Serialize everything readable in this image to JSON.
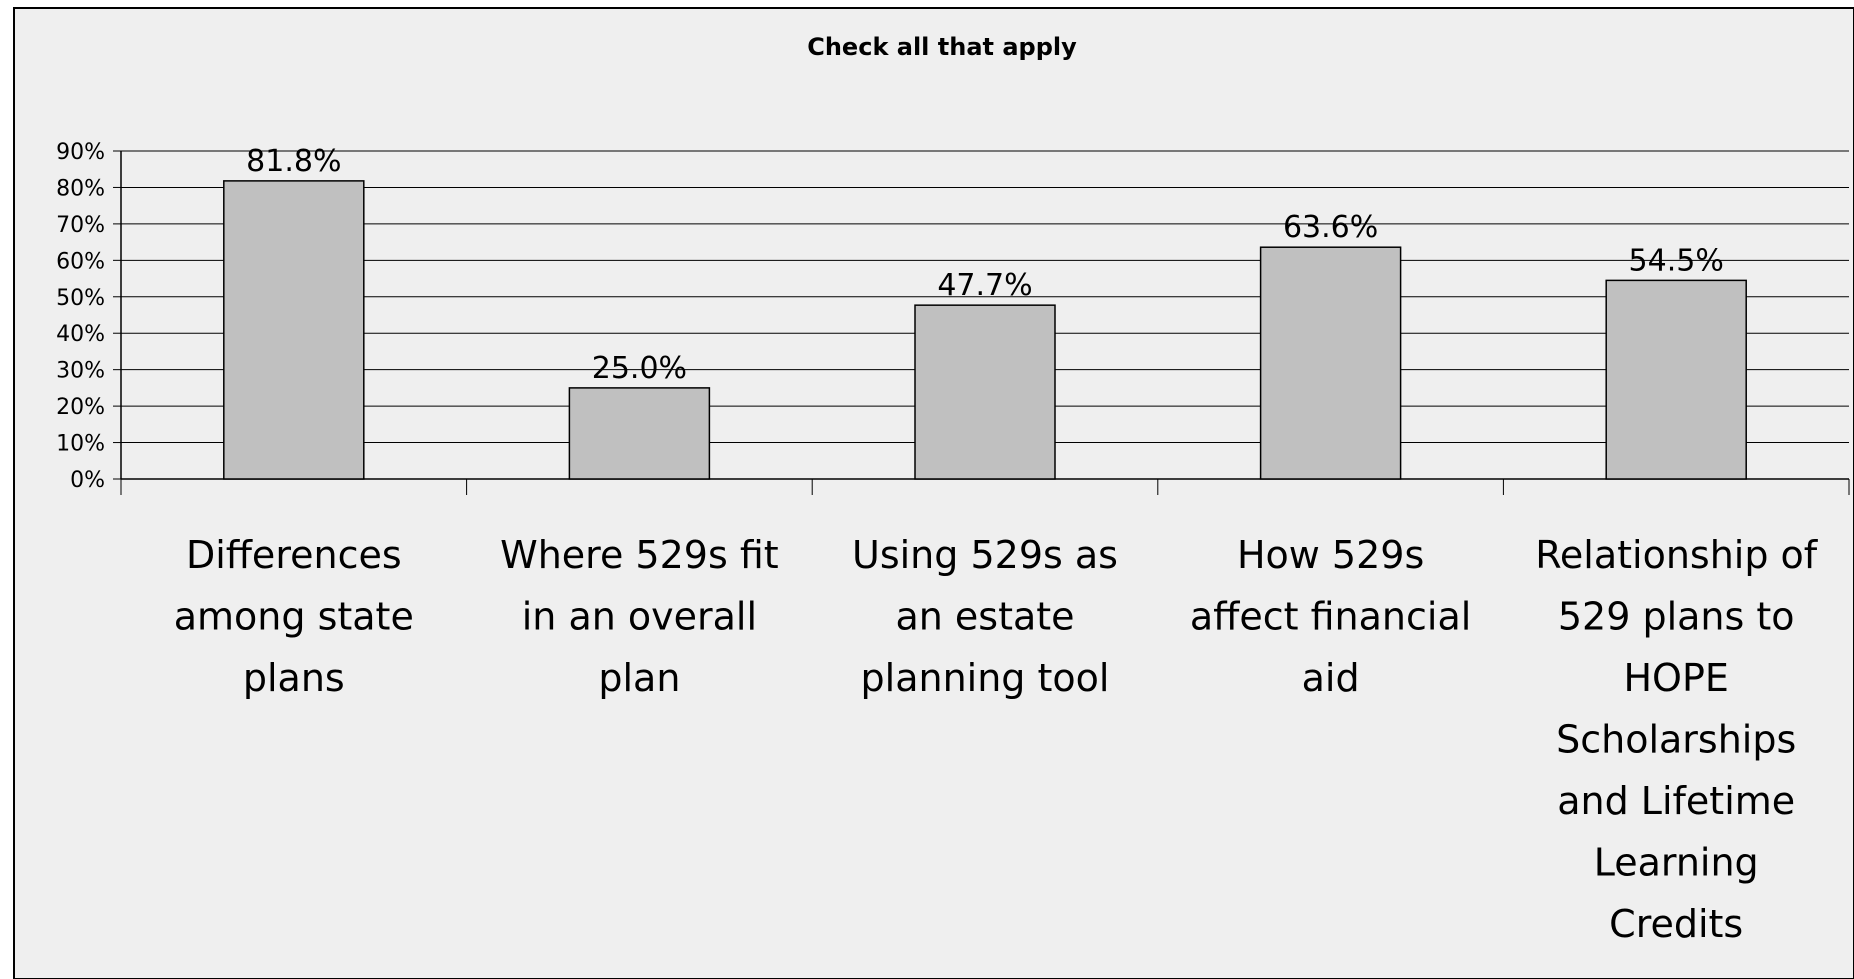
{
  "chart_data": {
    "type": "bar",
    "title": "Check all that apply",
    "xlabel": "",
    "ylabel": "",
    "ylim": [
      0,
      90
    ],
    "ytick_step": 10,
    "ytick_suffix": "%",
    "grid": true,
    "legend": "none",
    "categories": [
      "Differences among state plans",
      "Where 529s fit in an overall plan",
      "Using 529s as an estate planning tool",
      "How 529s affect financial aid",
      "Relationship of 529 plans to HOPE Scholarships and Lifetime Learning Credits"
    ],
    "category_lines": [
      [
        "Differences",
        "among state",
        "plans"
      ],
      [
        "Where 529s fit",
        "in an overall",
        "plan"
      ],
      [
        "Using 529s as",
        "an estate",
        "planning tool"
      ],
      [
        "How 529s",
        "affect financial",
        "aid"
      ],
      [
        "Relationship of",
        "529 plans to",
        "HOPE",
        "Scholarships",
        "and Lifetime",
        "Learning",
        "Credits"
      ]
    ],
    "values": [
      81.8,
      25.0,
      47.7,
      63.6,
      54.5
    ],
    "data_labels": [
      "81.8%",
      "25.0%",
      "47.7%",
      "63.6%",
      "54.5%"
    ],
    "colors": {
      "background": "#efefef",
      "bar_fill": "#c0c0c0",
      "bar_stroke": "#000000",
      "grid": "#000000"
    }
  }
}
